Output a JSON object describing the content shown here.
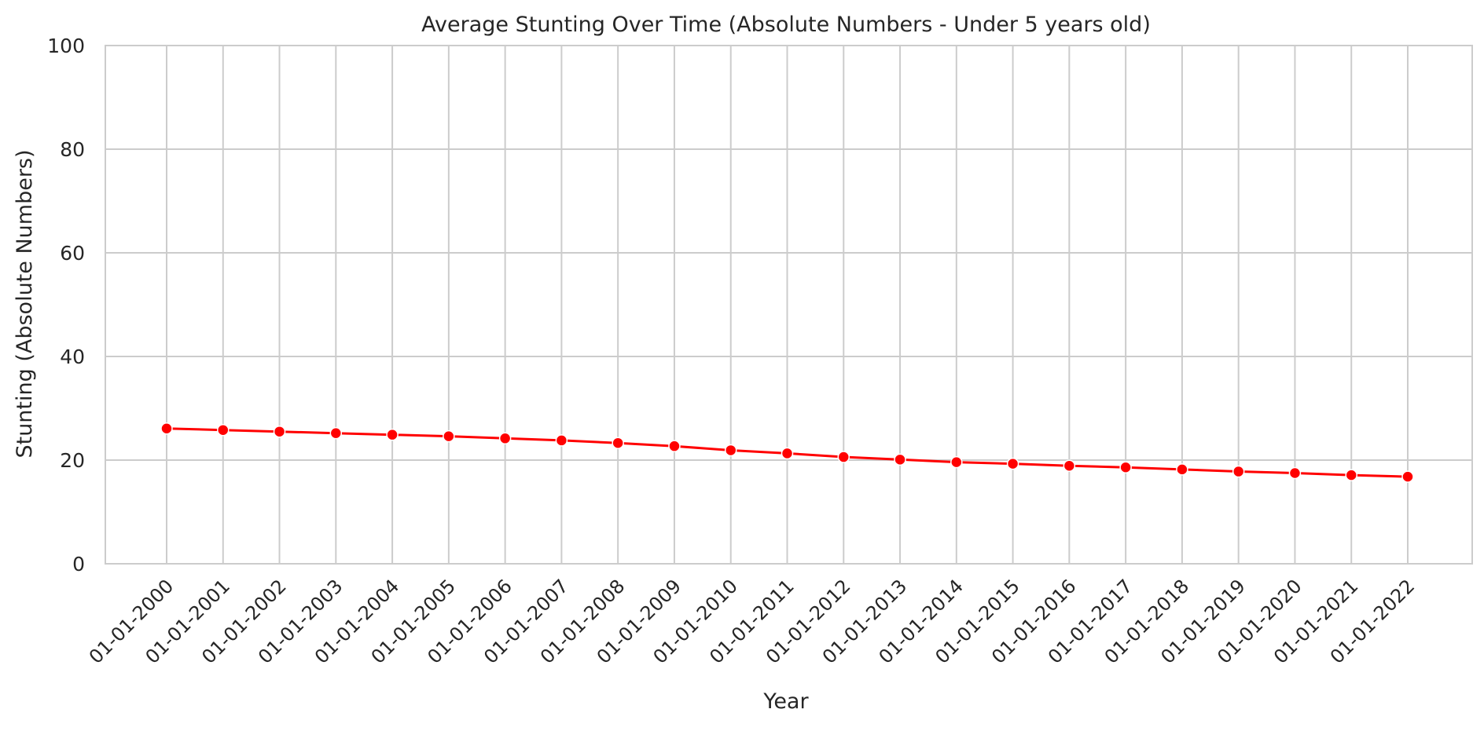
{
  "chart_data": {
    "type": "line",
    "title": "Average Stunting Over Time (Absolute Numbers - Under 5 years old)",
    "xlabel": "Year",
    "ylabel": "Stunting (Absolute Numbers)",
    "ylim": [
      0,
      100
    ],
    "yticks": [
      0,
      20,
      40,
      60,
      80,
      100
    ],
    "grid": true,
    "categories": [
      "01-01-2000",
      "01-01-2001",
      "01-01-2002",
      "01-01-2003",
      "01-01-2004",
      "01-01-2005",
      "01-01-2006",
      "01-01-2007",
      "01-01-2008",
      "01-01-2009",
      "01-01-2010",
      "01-01-2011",
      "01-01-2012",
      "01-01-2013",
      "01-01-2014",
      "01-01-2015",
      "01-01-2016",
      "01-01-2017",
      "01-01-2018",
      "01-01-2019",
      "01-01-2020",
      "01-01-2021",
      "01-01-2022"
    ],
    "series": [
      {
        "color": "#ff0000",
        "values": [
          26.1,
          25.8,
          25.5,
          25.2,
          24.9,
          24.6,
          24.2,
          23.8,
          23.3,
          22.7,
          21.9,
          21.3,
          20.6,
          20.1,
          19.6,
          19.3,
          18.9,
          18.6,
          18.2,
          17.8,
          17.5,
          17.1,
          16.8
        ]
      }
    ]
  }
}
